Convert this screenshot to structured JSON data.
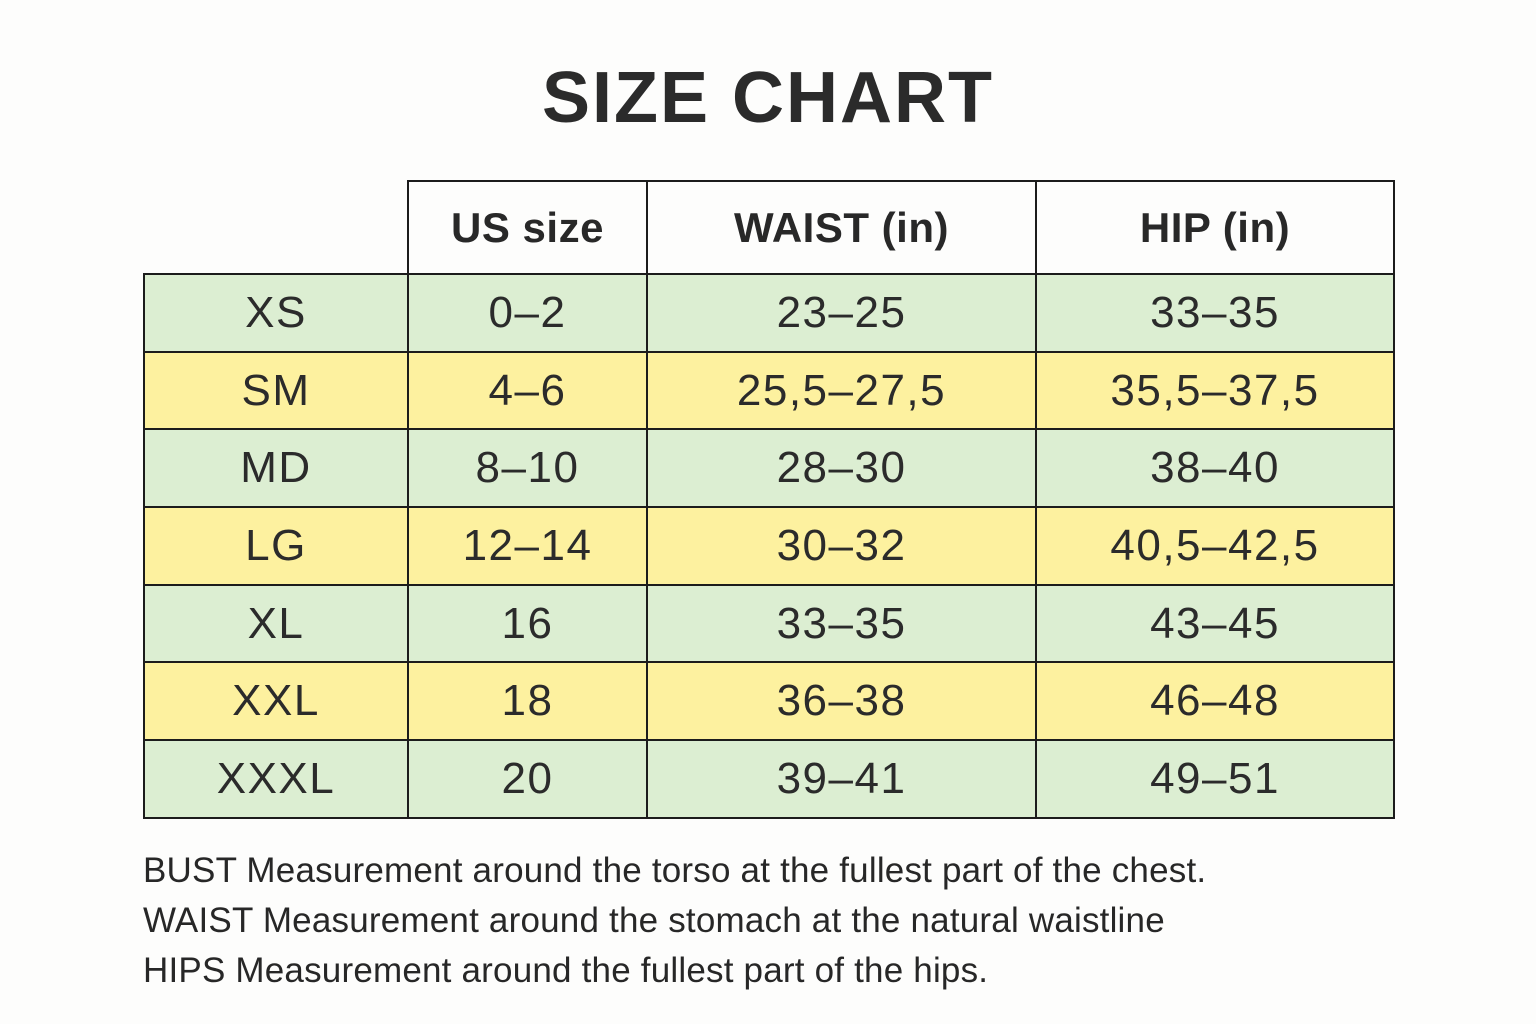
{
  "title": "SIZE CHART",
  "table": {
    "headers": [
      "",
      "US size",
      "WAIST (in)",
      "HIP (in)"
    ],
    "rows": [
      {
        "size": "XS",
        "us": "0–2",
        "waist": "23–25",
        "hip": "33–35"
      },
      {
        "size": "SM",
        "us": "4–6",
        "waist": "25,5–27,5",
        "hip": "35,5–37,5"
      },
      {
        "size": "MD",
        "us": "8–10",
        "waist": "28–30",
        "hip": "38–40"
      },
      {
        "size": "LG",
        "us": "12–14",
        "waist": "30–32",
        "hip": "40,5–42,5"
      },
      {
        "size": "XL",
        "us": "16",
        "waist": "33–35",
        "hip": "43–45"
      },
      {
        "size": "XXL",
        "us": "18",
        "waist": "36–38",
        "hip": "46–48"
      },
      {
        "size": "XXXL",
        "us": "20",
        "waist": "39–41",
        "hip": "49–51"
      }
    ],
    "row_colors": {
      "green": "#dceed2",
      "yellow": "#fdf19f"
    },
    "border_color": "#1c1c1c"
  },
  "notes": [
    "BUST Measurement around the torso at the fullest part of the chest.",
    "WAIST Measurement around the stomach at the natural waistline",
    "HIPS Measurement around the fullest part of the hips."
  ]
}
